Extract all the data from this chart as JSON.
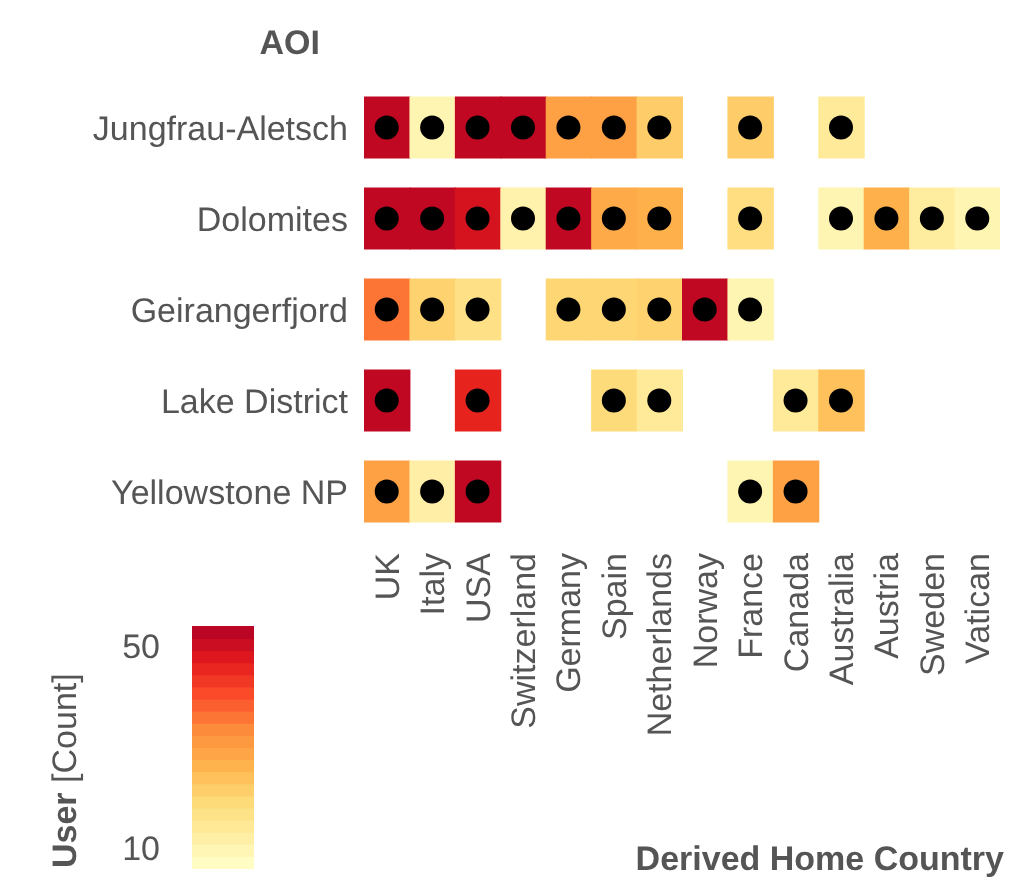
{
  "chart_data": {
    "type": "heatmap",
    "ylabel": "AOI",
    "xlabel": "Derived Home Country",
    "clabel": "User [Count]",
    "categories": [
      "UK",
      "Italy",
      "USA",
      "Switzerland",
      "Germany",
      "Spain",
      "Netherlands",
      "Norway",
      "France",
      "Canada",
      "Australia",
      "Austria",
      "Sweden",
      "Vatican"
    ],
    "y_categories": [
      "Jungfrau-Aletsch",
      "Dolomites",
      "Geirangerfjord",
      "Lake District",
      "Yellowstone NP"
    ],
    "cells": [
      [
        52,
        10,
        52,
        52,
        30,
        30,
        22,
        null,
        22,
        null,
        14,
        null,
        null,
        null
      ],
      [
        52,
        52,
        49,
        11,
        52,
        28,
        27,
        null,
        18,
        null,
        10,
        27,
        13,
        10
      ],
      [
        36,
        21,
        17,
        null,
        20,
        20,
        21,
        52,
        10,
        null,
        null,
        null,
        null,
        null
      ],
      [
        52,
        null,
        46,
        null,
        null,
        19,
        14,
        null,
        null,
        14,
        24,
        null,
        null,
        null
      ],
      [
        30,
        12,
        52,
        null,
        null,
        null,
        null,
        null,
        10,
        30,
        null,
        null,
        null,
        null
      ]
    ],
    "clim": [
      6,
      54
    ],
    "cticks": [
      10,
      50
    ],
    "marker": "circle"
  }
}
